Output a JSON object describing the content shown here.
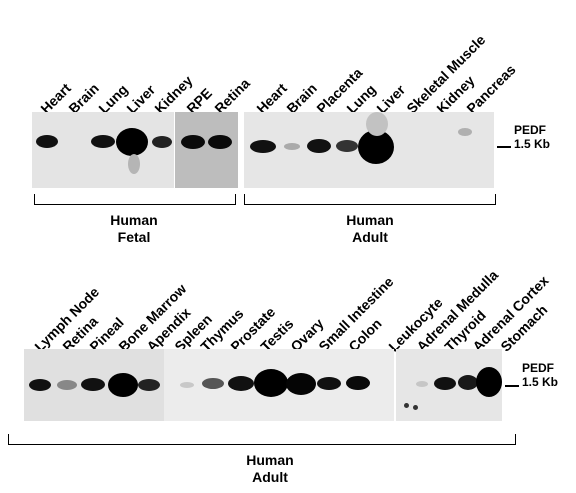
{
  "panel_top": {
    "fetal_lanes": [
      "Heart",
      "Brain",
      "Lung",
      "Liver",
      "Kidney",
      "RPE",
      "Retina"
    ],
    "adult_lanes": [
      "Heart",
      "Brain",
      "Placenta",
      "Lung",
      "Liver",
      "Skeletal Muscle",
      "Kidney",
      "Pancreas"
    ],
    "marker_name": "PEDF",
    "marker_size": "1.5 Kb",
    "group_fetal_line1": "Human",
    "group_fetal_line2": "Fetal",
    "group_adult_line1": "Human",
    "group_adult_line2": "Adult"
  },
  "panel_bottom": {
    "lanes": [
      "Lymph Node",
      "Retina",
      "Pineal",
      "Bone Marrow",
      "Apendix",
      "Spleen",
      "Thymus",
      "Prostate",
      "Testis",
      "Ovary",
      "Small Intestine",
      "Colon",
      "Leukocyte",
      "Adrenal Medulla",
      "Thyroid",
      "Adrenal Cortex",
      "Stomach"
    ],
    "marker_name": "PEDF",
    "marker_size": "1.5 Kb",
    "group_line1": "Human",
    "group_line2": "Adult"
  }
}
